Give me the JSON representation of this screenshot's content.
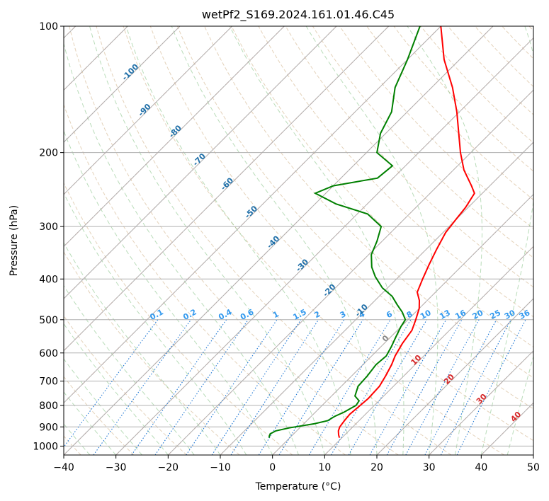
{
  "chart_data": {
    "type": "line",
    "title": "wetPf2_S169.2024.161.01.46.C45",
    "xlabel": "Temperature (°C)",
    "ylabel": "Pressure (hPa)",
    "xlim": [
      -40,
      50
    ],
    "ylim": [
      1050,
      100
    ],
    "y_scale": "log",
    "grid": true,
    "x_ticks": [
      -40,
      -30,
      -20,
      -10,
      0,
      10,
      20,
      30,
      40,
      50
    ],
    "x_tick_labels": [
      "−40",
      "−30",
      "−20",
      "−10",
      "0",
      "10",
      "20",
      "30",
      "40",
      "50"
    ],
    "y_ticks": [
      100,
      200,
      300,
      400,
      500,
      600,
      700,
      800,
      900,
      1000
    ],
    "y_tick_labels": [
      "100",
      "200",
      "300",
      "400",
      "500",
      "600",
      "700",
      "800",
      "900",
      "1000"
    ],
    "skew": 45,
    "series": [
      {
        "color": "#ff0000",
        "points": [
          [
            9.5,
            955
          ],
          [
            8.8,
            940
          ],
          [
            8.0,
            920
          ],
          [
            7.5,
            900
          ],
          [
            7.2,
            870
          ],
          [
            7.0,
            840
          ],
          [
            7.3,
            800
          ],
          [
            7.5,
            770
          ],
          [
            7.3,
            720
          ],
          [
            6.5,
            680
          ],
          [
            5.5,
            640
          ],
          [
            4.5,
            610
          ],
          [
            3.5,
            570
          ],
          [
            2.8,
            530
          ],
          [
            1.5,
            500
          ],
          [
            0.0,
            470
          ],
          [
            -1.5,
            450
          ],
          [
            -3.5,
            430
          ],
          [
            -5.0,
            400
          ],
          [
            -6.5,
            370
          ],
          [
            -8.0,
            340
          ],
          [
            -9.5,
            310
          ],
          [
            -10.0,
            290
          ],
          [
            -10.5,
            270
          ],
          [
            -11.5,
            250
          ],
          [
            -13.5,
            240
          ],
          [
            -18.0,
            220
          ],
          [
            -22.0,
            200
          ],
          [
            -26.0,
            180
          ],
          [
            -30.5,
            160
          ],
          [
            -36.0,
            140
          ],
          [
            -43.0,
            120
          ],
          [
            -50.0,
            100
          ]
        ]
      },
      {
        "color": "#008000",
        "points": [
          [
            -4.0,
            955
          ],
          [
            -4.5,
            935
          ],
          [
            -4.0,
            920
          ],
          [
            -2.0,
            905
          ],
          [
            2.0,
            885
          ],
          [
            4.0,
            870
          ],
          [
            4.5,
            850
          ],
          [
            5.5,
            830
          ],
          [
            6.5,
            800
          ],
          [
            6.2,
            780
          ],
          [
            4.5,
            760
          ],
          [
            3.2,
            720
          ],
          [
            3.0,
            680
          ],
          [
            2.5,
            640
          ],
          [
            2.8,
            610
          ],
          [
            2.0,
            580
          ],
          [
            1.0,
            550
          ],
          [
            0.0,
            520
          ],
          [
            -0.5,
            500
          ],
          [
            -2.5,
            480
          ],
          [
            -5.0,
            460
          ],
          [
            -7.5,
            440
          ],
          [
            -11.0,
            420
          ],
          [
            -14.5,
            395
          ],
          [
            -17.0,
            375
          ],
          [
            -19.5,
            350
          ],
          [
            -21.0,
            325
          ],
          [
            -23.0,
            300
          ],
          [
            -28.0,
            280
          ],
          [
            -36.0,
            265
          ],
          [
            -42.0,
            250
          ],
          [
            -40.0,
            240
          ],
          [
            -33.0,
            230
          ],
          [
            -32.5,
            215
          ],
          [
            -38.0,
            200
          ],
          [
            -41.0,
            180
          ],
          [
            -43.0,
            160
          ],
          [
            -47.0,
            140
          ],
          [
            -50.0,
            120
          ],
          [
            -54.0,
            100
          ]
        ]
      }
    ],
    "mixing_ratio_labels": [
      "0.1",
      "0.2",
      "0.4",
      "0.6",
      "1",
      "1.5",
      "2",
      "3",
      "4",
      "6",
      "8",
      "10",
      "13",
      "16",
      "20",
      "25",
      "30",
      "36"
    ],
    "dry_adiabat_labels": [
      "-100",
      "-90",
      "-80",
      "-70",
      "-60",
      "-50",
      "-40",
      "-30",
      "-20",
      "-10"
    ],
    "moist_adiabat_labels": [
      "0",
      "10",
      "20",
      "30",
      "40"
    ]
  }
}
